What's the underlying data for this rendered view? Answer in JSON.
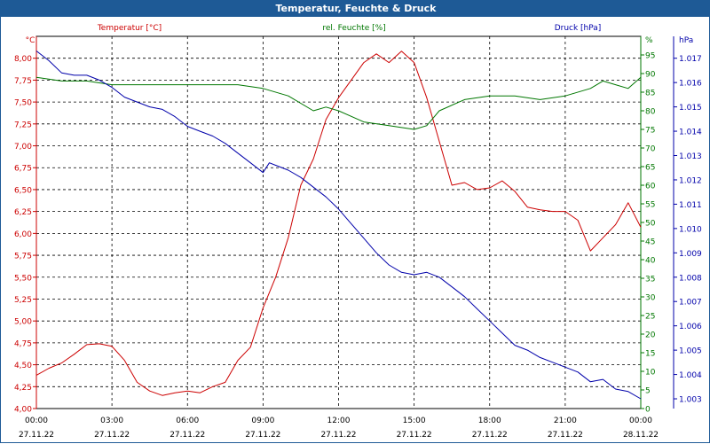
{
  "title": "Temperatur, Feuchte & Druck",
  "colors": {
    "temperature": "#cc0000",
    "humidity": "#007700",
    "pressure": "#0000aa",
    "title_bg": "#1e5a96",
    "grid": "#000000"
  },
  "chart_data": {
    "type": "line",
    "title": "Temperatur, Feuchte & Druck",
    "x_ticks": [
      {
        "time": "00:00",
        "date": "27.11.22"
      },
      {
        "time": "03:00",
        "date": "27.11.22"
      },
      {
        "time": "06:00",
        "date": "27.11.22"
      },
      {
        "time": "09:00",
        "date": "27.11.22"
      },
      {
        "time": "12:00",
        "date": "27.11.22"
      },
      {
        "time": "15:00",
        "date": "27.11.22"
      },
      {
        "time": "18:00",
        "date": "27.11.22"
      },
      {
        "time": "21:00",
        "date": "27.11.22"
      },
      {
        "time": "00:00",
        "date": "28.11.22"
      }
    ],
    "x_range_hours": [
      0,
      24
    ],
    "axes": {
      "temperature": {
        "label": "Temperatur [°C]",
        "unit": "°C",
        "range": [
          4.0,
          8.25
        ],
        "ticks": [
          "8,00",
          "7,75",
          "7,50",
          "7,25",
          "7,00",
          "6,75",
          "6,50",
          "6,25",
          "6,00",
          "5,75",
          "5,50",
          "5,25",
          "5,00",
          "4,75",
          "4,50",
          "4,25",
          "4,00"
        ],
        "tick_values": [
          8.0,
          7.75,
          7.5,
          7.25,
          7.0,
          6.75,
          6.5,
          6.25,
          6.0,
          5.75,
          5.5,
          5.25,
          5.0,
          4.75,
          4.5,
          4.25,
          4.0
        ]
      },
      "humidity": {
        "label": "rel. Feuchte [%]",
        "unit": "%",
        "range": [
          0,
          100
        ],
        "ticks": [
          "95",
          "90",
          "85",
          "80",
          "75",
          "70",
          "65",
          "60",
          "55",
          "50",
          "45",
          "40",
          "35",
          "30",
          "25",
          "20",
          "15",
          "10",
          "5",
          "0"
        ],
        "tick_values": [
          95,
          90,
          85,
          80,
          75,
          70,
          65,
          60,
          55,
          50,
          45,
          40,
          35,
          30,
          25,
          20,
          15,
          10,
          5,
          0
        ]
      },
      "pressure": {
        "label": "Druck [hPa]",
        "unit": "hPa",
        "range": [
          1002.6,
          1017.9
        ],
        "ticks": [
          "1.017",
          "1.016",
          "1.015",
          "1.014",
          "1.013",
          "1.012",
          "1.011",
          "1.010",
          "1.009",
          "1.008",
          "1.007",
          "1.006",
          "1.005",
          "1.004",
          "1.003"
        ],
        "tick_values": [
          1017,
          1016,
          1015,
          1014,
          1013,
          1012,
          1011,
          1010,
          1009,
          1008,
          1007,
          1006,
          1005,
          1004,
          1003
        ]
      }
    },
    "series": [
      {
        "name": "Temperatur",
        "axis": "temperature",
        "hours": [
          0,
          0.5,
          1,
          1.5,
          2,
          2.5,
          3,
          3.5,
          4,
          4.5,
          5,
          5.5,
          6,
          6.5,
          7,
          7.5,
          8,
          8.5,
          9,
          9.5,
          10,
          10.5,
          11,
          11.5,
          12,
          12.5,
          13,
          13.5,
          14,
          14.5,
          15,
          15.5,
          16,
          16.5,
          17,
          17.5,
          18,
          18.5,
          19,
          19.5,
          20,
          20.5,
          21,
          21.5,
          22,
          22.5,
          23,
          23.5,
          24
        ],
        "values": [
          4.38,
          4.46,
          4.52,
          4.62,
          4.73,
          4.74,
          4.71,
          4.55,
          4.3,
          4.2,
          4.15,
          4.18,
          4.2,
          4.18,
          4.25,
          4.3,
          4.55,
          4.7,
          5.15,
          5.5,
          5.95,
          6.55,
          6.85,
          7.3,
          7.55,
          7.75,
          7.95,
          8.05,
          7.95,
          8.08,
          7.95,
          7.55,
          7.05,
          6.55,
          6.58,
          6.5,
          6.52,
          6.6,
          6.48,
          6.3,
          6.27,
          6.25,
          6.25,
          6.15,
          5.8,
          5.95,
          6.1,
          6.35,
          6.07
        ]
      },
      {
        "name": "rel. Feuchte",
        "axis": "humidity",
        "hours": [
          0,
          1,
          2,
          3,
          4,
          5,
          6,
          7,
          8,
          9,
          10,
          11,
          11.5,
          12,
          13,
          14,
          15,
          15.5,
          16,
          17,
          18,
          19,
          20,
          21,
          22,
          22.5,
          23,
          23.5,
          24
        ],
        "values": [
          89,
          88,
          88,
          87,
          87,
          87,
          87,
          87,
          87,
          86,
          84,
          80,
          81,
          80,
          77,
          76,
          75,
          76,
          80,
          83,
          84,
          84,
          83,
          84,
          86,
          88,
          87,
          86,
          89
        ]
      },
      {
        "name": "Druck",
        "axis": "pressure",
        "hours": [
          0,
          0.5,
          1,
          1.5,
          2,
          2.5,
          3,
          3.5,
          4,
          4.5,
          5,
          5.5,
          6,
          6.5,
          7,
          7.5,
          8,
          8.5,
          9,
          9.25,
          9.5,
          10,
          10.5,
          11,
          11.5,
          12,
          12.5,
          13,
          13.5,
          14,
          14.5,
          15,
          15.5,
          16,
          16.5,
          17,
          17.5,
          18,
          18.5,
          19,
          19.5,
          20,
          20.5,
          21,
          21.5,
          22,
          22.5,
          23,
          23.5,
          24
        ],
        "values": [
          1017.3,
          1016.9,
          1016.4,
          1016.3,
          1016.3,
          1016.1,
          1015.8,
          1015.4,
          1015.2,
          1015.0,
          1014.9,
          1014.6,
          1014.2,
          1014.0,
          1013.8,
          1013.5,
          1013.1,
          1012.7,
          1012.3,
          1012.7,
          1012.6,
          1012.4,
          1012.1,
          1011.7,
          1011.3,
          1010.8,
          1010.2,
          1009.6,
          1009.0,
          1008.5,
          1008.2,
          1008.1,
          1008.2,
          1008.0,
          1007.6,
          1007.2,
          1006.7,
          1006.2,
          1005.7,
          1005.2,
          1005.0,
          1004.7,
          1004.5,
          1004.3,
          1004.1,
          1003.7,
          1003.8,
          1003.4,
          1003.3,
          1003.0
        ]
      }
    ],
    "grid": true,
    "legend": "top-axis-labels"
  }
}
